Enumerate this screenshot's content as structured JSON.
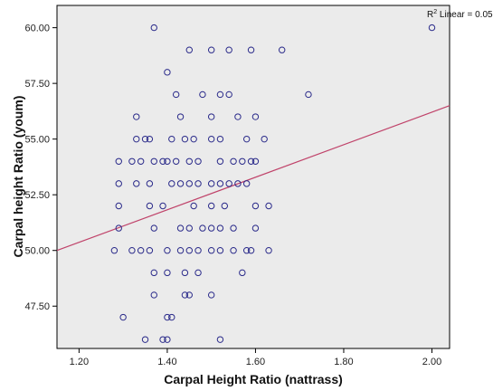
{
  "chart_data": {
    "type": "scatter",
    "title": "",
    "xlabel": "Carpal Height Ratio (nattrass)",
    "ylabel": "Carpal height Ratio (youm)",
    "xlim": [
      1.15,
      2.04
    ],
    "ylim": [
      45.6,
      61.0
    ],
    "x_ticks": [
      1.2,
      1.4,
      1.6,
      1.8,
      2.0
    ],
    "x_tick_labels": [
      "1.20",
      "1.40",
      "1.60",
      "1.80",
      "2.00"
    ],
    "y_ticks": [
      47.5,
      50.0,
      52.5,
      55.0,
      57.5,
      60.0
    ],
    "y_tick_labels": [
      "47.50",
      "50.00",
      "52.50",
      "55.00",
      "57.50",
      "60.00"
    ],
    "grid": false,
    "plot_background": "#ebebeb",
    "marker_color": "#2a2a8a",
    "fit_line_color": "#c0436a",
    "fit_line": {
      "x": [
        1.15,
        2.04
      ],
      "y": [
        50.0,
        56.5
      ]
    },
    "annotation": {
      "prefix": "R",
      "superscript": "2",
      "text": " Linear = 0.05"
    },
    "points": [
      [
        1.37,
        60.0
      ],
      [
        2.0,
        60.0
      ],
      [
        1.45,
        59.0
      ],
      [
        1.5,
        59.0
      ],
      [
        1.54,
        59.0
      ],
      [
        1.59,
        59.0
      ],
      [
        1.66,
        59.0
      ],
      [
        1.4,
        58.0
      ],
      [
        1.42,
        57.0
      ],
      [
        1.48,
        57.0
      ],
      [
        1.52,
        57.0
      ],
      [
        1.54,
        57.0
      ],
      [
        1.72,
        57.0
      ],
      [
        1.33,
        56.0
      ],
      [
        1.43,
        56.0
      ],
      [
        1.5,
        56.0
      ],
      [
        1.56,
        56.0
      ],
      [
        1.6,
        56.0
      ],
      [
        1.33,
        55.0
      ],
      [
        1.35,
        55.0
      ],
      [
        1.36,
        55.0
      ],
      [
        1.41,
        55.0
      ],
      [
        1.44,
        55.0
      ],
      [
        1.46,
        55.0
      ],
      [
        1.5,
        55.0
      ],
      [
        1.52,
        55.0
      ],
      [
        1.58,
        55.0
      ],
      [
        1.62,
        55.0
      ],
      [
        1.29,
        54.0
      ],
      [
        1.32,
        54.0
      ],
      [
        1.34,
        54.0
      ],
      [
        1.37,
        54.0
      ],
      [
        1.39,
        54.0
      ],
      [
        1.4,
        54.0
      ],
      [
        1.42,
        54.0
      ],
      [
        1.45,
        54.0
      ],
      [
        1.47,
        54.0
      ],
      [
        1.52,
        54.0
      ],
      [
        1.55,
        54.0
      ],
      [
        1.57,
        54.0
      ],
      [
        1.59,
        54.0
      ],
      [
        1.6,
        54.0
      ],
      [
        1.29,
        53.0
      ],
      [
        1.33,
        53.0
      ],
      [
        1.36,
        53.0
      ],
      [
        1.41,
        53.0
      ],
      [
        1.43,
        53.0
      ],
      [
        1.45,
        53.0
      ],
      [
        1.47,
        53.0
      ],
      [
        1.5,
        53.0
      ],
      [
        1.52,
        53.0
      ],
      [
        1.54,
        53.0
      ],
      [
        1.56,
        53.0
      ],
      [
        1.58,
        53.0
      ],
      [
        1.29,
        52.0
      ],
      [
        1.36,
        52.0
      ],
      [
        1.39,
        52.0
      ],
      [
        1.46,
        52.0
      ],
      [
        1.5,
        52.0
      ],
      [
        1.53,
        52.0
      ],
      [
        1.6,
        52.0
      ],
      [
        1.63,
        52.0
      ],
      [
        1.29,
        51.0
      ],
      [
        1.37,
        51.0
      ],
      [
        1.43,
        51.0
      ],
      [
        1.45,
        51.0
      ],
      [
        1.48,
        51.0
      ],
      [
        1.5,
        51.0
      ],
      [
        1.52,
        51.0
      ],
      [
        1.55,
        51.0
      ],
      [
        1.6,
        51.0
      ],
      [
        1.28,
        50.0
      ],
      [
        1.32,
        50.0
      ],
      [
        1.34,
        50.0
      ],
      [
        1.36,
        50.0
      ],
      [
        1.4,
        50.0
      ],
      [
        1.43,
        50.0
      ],
      [
        1.45,
        50.0
      ],
      [
        1.47,
        50.0
      ],
      [
        1.5,
        50.0
      ],
      [
        1.52,
        50.0
      ],
      [
        1.55,
        50.0
      ],
      [
        1.58,
        50.0
      ],
      [
        1.59,
        50.0
      ],
      [
        1.63,
        50.0
      ],
      [
        1.37,
        49.0
      ],
      [
        1.4,
        49.0
      ],
      [
        1.44,
        49.0
      ],
      [
        1.47,
        49.0
      ],
      [
        1.57,
        49.0
      ],
      [
        1.37,
        48.0
      ],
      [
        1.44,
        48.0
      ],
      [
        1.45,
        48.0
      ],
      [
        1.5,
        48.0
      ],
      [
        1.3,
        47.0
      ],
      [
        1.4,
        47.0
      ],
      [
        1.41,
        47.0
      ],
      [
        1.35,
        46.0
      ],
      [
        1.39,
        46.0
      ],
      [
        1.4,
        46.0
      ],
      [
        1.52,
        46.0
      ]
    ]
  }
}
